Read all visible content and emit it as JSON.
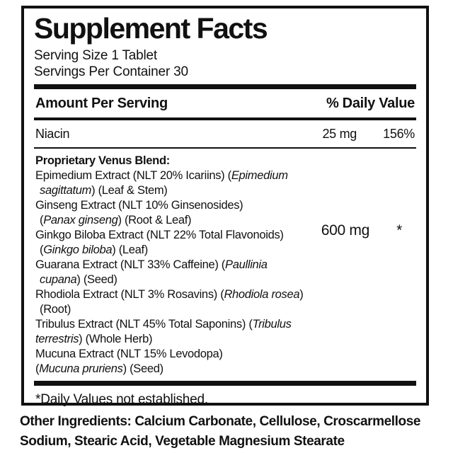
{
  "label": {
    "title": "Supplement Facts",
    "serving_size": "Serving Size 1 Tablet",
    "servings_per_container": "Servings Per Container 30",
    "columns": {
      "left": "Amount Per Serving",
      "right": "% Daily Value"
    },
    "rows": [
      {
        "name": "Niacin",
        "amount": "25 mg",
        "daily_value": "156%"
      }
    ],
    "blend": {
      "amount": "600 mg",
      "daily_value": "*",
      "lines": [
        {
          "indent": false,
          "segments": [
            [
              "Proprietary Venus Blend:",
              "b"
            ]
          ]
        },
        {
          "indent": false,
          "segments": [
            [
              "Epimedium Extract (NLT 20% Icariins) (",
              "n"
            ],
            [
              "Epimedium",
              "i"
            ]
          ]
        },
        {
          "indent": true,
          "segments": [
            [
              "sagittatum",
              "i"
            ],
            [
              ") (Leaf & Stem)",
              "n"
            ]
          ]
        },
        {
          "indent": false,
          "segments": [
            [
              "Ginseng Extract (NLT 10% Ginsenosides)",
              "n"
            ]
          ]
        },
        {
          "indent": true,
          "segments": [
            [
              "(",
              "n"
            ],
            [
              "Panax ginseng",
              "i"
            ],
            [
              ") (Root & Leaf)",
              "n"
            ]
          ]
        },
        {
          "indent": false,
          "segments": [
            [
              "Ginkgo Biloba Extract (NLT 22% Total Flavonoids)",
              "n"
            ]
          ]
        },
        {
          "indent": true,
          "segments": [
            [
              "(",
              "n"
            ],
            [
              "Ginkgo biloba",
              "i"
            ],
            [
              ") (Leaf)",
              "n"
            ]
          ]
        },
        {
          "indent": false,
          "segments": [
            [
              "Guarana Extract (NLT 33% Caffeine) (",
              "n"
            ],
            [
              "Paullinia",
              "i"
            ]
          ]
        },
        {
          "indent": true,
          "segments": [
            [
              "cupana",
              "i"
            ],
            [
              ") (Seed)",
              "n"
            ]
          ]
        },
        {
          "indent": false,
          "segments": [
            [
              "Rhodiola Extract (NLT 3% Rosavins) (",
              "n"
            ],
            [
              "Rhodiola rosea",
              "i"
            ],
            [
              ")",
              "n"
            ]
          ]
        },
        {
          "indent": true,
          "segments": [
            [
              "(Root)",
              "n"
            ]
          ]
        },
        {
          "indent": false,
          "segments": [
            [
              "Tribulus Extract (NLT 45% Total Saponins) (",
              "n"
            ],
            [
              "Tribulus",
              "i"
            ]
          ]
        },
        {
          "indent": false,
          "segments": [
            [
              "terrestris",
              "i"
            ],
            [
              ") (Whole Herb)",
              "n"
            ]
          ]
        },
        {
          "indent": false,
          "segments": [
            [
              "Mucuna Extract (NLT 15% Levodopa)",
              "n"
            ]
          ]
        },
        {
          "indent": false,
          "segments": [
            [
              "(",
              "n"
            ],
            [
              "Mucuna pruriens",
              "i"
            ],
            [
              ") (Seed)",
              "n"
            ]
          ]
        }
      ]
    },
    "footnote": "*Daily Values not established."
  },
  "other_ingredients": "Other Ingredients: Calcium Carbonate, Cellulose, Croscarmellose Sodium, Stearic Acid, Vegetable Magnesium Stearate",
  "colors": {
    "ink": "#111111",
    "background": "#ffffff"
  }
}
